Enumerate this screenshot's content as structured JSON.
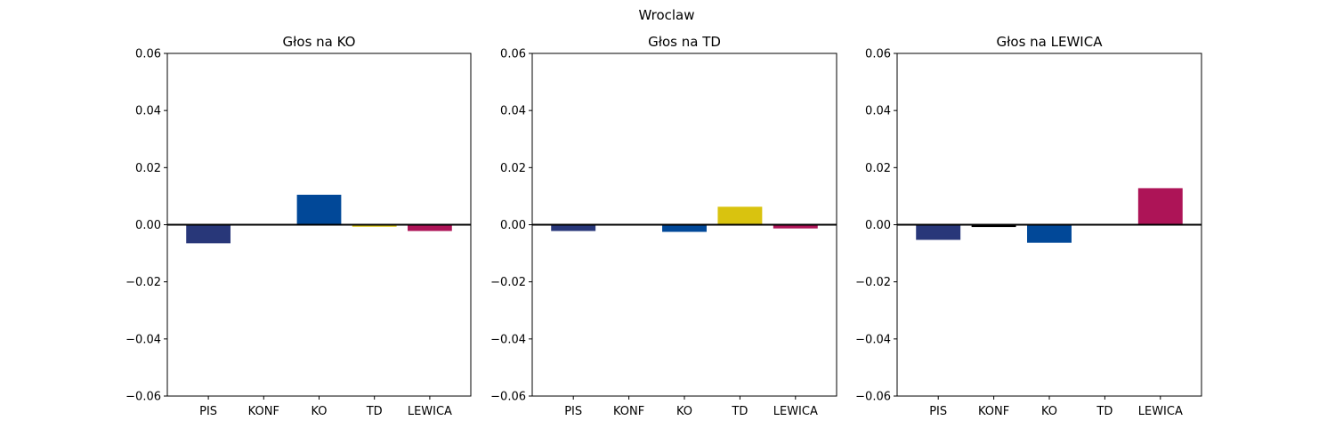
{
  "figure": {
    "title": "Wroclaw"
  },
  "chart_data": [
    {
      "type": "bar",
      "title": "Głos na KO",
      "categories": [
        "PIS",
        "KONF",
        "KO",
        "TD",
        "LEWICA"
      ],
      "values": [
        -0.0065,
        0.0,
        0.0105,
        -0.0007,
        -0.0022
      ],
      "colors": [
        "#283779",
        "#000000",
        "#014898",
        "#d9c30f",
        "#ad1457"
      ],
      "ylim": [
        -0.06,
        0.06
      ],
      "yticks": [
        "0.06",
        "0.04",
        "0.02",
        "0.00",
        "−0.02",
        "−0.04",
        "−0.06"
      ],
      "xlabel": "",
      "ylabel": "",
      "grid": false
    },
    {
      "type": "bar",
      "title": "Głos na TD",
      "categories": [
        "PIS",
        "KONF",
        "KO",
        "TD",
        "LEWICA"
      ],
      "values": [
        -0.0022,
        0.0,
        -0.0025,
        0.0063,
        -0.0013
      ],
      "colors": [
        "#283779",
        "#000000",
        "#014898",
        "#d9c30f",
        "#ad1457"
      ],
      "ylim": [
        -0.06,
        0.06
      ],
      "yticks": [
        "0.06",
        "0.04",
        "0.02",
        "0.00",
        "−0.02",
        "−0.04",
        "−0.06"
      ],
      "xlabel": "",
      "ylabel": "",
      "grid": false
    },
    {
      "type": "bar",
      "title": "Głos na LEWICA",
      "categories": [
        "PIS",
        "KONF",
        "KO",
        "TD",
        "LEWICA"
      ],
      "values": [
        -0.0053,
        -0.0008,
        -0.0063,
        0.0,
        0.0128
      ],
      "colors": [
        "#283779",
        "#000000",
        "#014898",
        "#d9c30f",
        "#ad1457"
      ],
      "ylim": [
        -0.06,
        0.06
      ],
      "yticks": [
        "0.06",
        "0.04",
        "0.02",
        "0.00",
        "−0.02",
        "−0.04",
        "−0.06"
      ],
      "xlabel": "",
      "ylabel": "",
      "grid": false
    }
  ]
}
